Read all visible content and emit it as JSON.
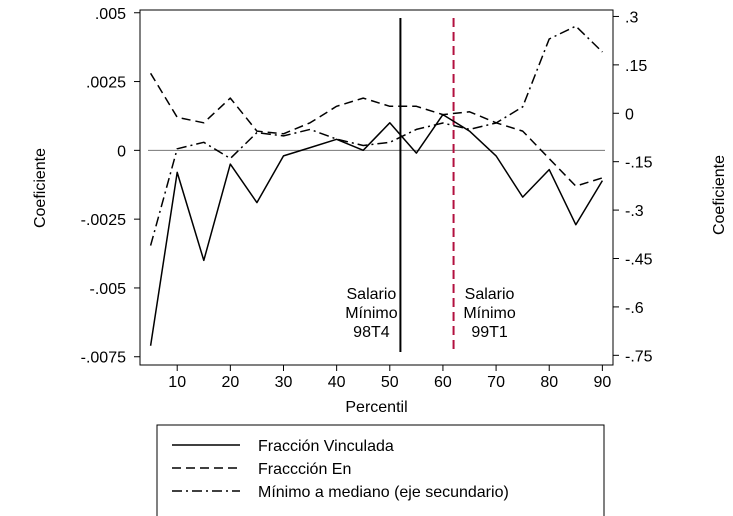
{
  "chart_data": {
    "type": "line",
    "xlabel": "Percentil",
    "ylabel_left": "Coeficiente",
    "ylabel_right": "Coeficiente",
    "xlim": [
      3,
      92
    ],
    "ylim_left": [
      -0.0078,
      0.0051
    ],
    "ylim_right": [
      -0.78,
      0.32
    ],
    "x_ticks": [
      10,
      20,
      30,
      40,
      50,
      60,
      70,
      80,
      90
    ],
    "y_ticks_left": [
      ".005",
      ".0025",
      "0",
      "-.0025",
      "-.005",
      "-.0075"
    ],
    "y_ticks_left_values": [
      0.005,
      0.0025,
      0,
      -0.0025,
      -0.005,
      -0.0075
    ],
    "y_ticks_right": [
      ".3",
      ".15",
      "0",
      "-.15",
      "-.3",
      "-.45",
      "-.6",
      "-.75"
    ],
    "y_ticks_right_values": [
      0.3,
      0.15,
      0,
      -0.15,
      -0.3,
      -0.45,
      -0.6,
      -0.75
    ],
    "x": [
      5,
      10,
      15,
      20,
      25,
      30,
      35,
      40,
      45,
      50,
      55,
      60,
      65,
      70,
      75,
      80,
      85,
      90
    ],
    "series": [
      {
        "name": "Fracción Vinculada",
        "axis": "left",
        "dash": "solid",
        "values": [
          -0.0071,
          -0.0008,
          -0.004,
          -0.0005,
          -0.0019,
          -0.0002,
          0.0001,
          0.0004,
          0.0,
          0.001,
          -0.0001,
          0.0013,
          0.0007,
          -0.0002,
          -0.0017,
          -0.0007,
          -0.0027,
          -0.0011
        ]
      },
      {
        "name": "Fraccción En",
        "axis": "left",
        "dash": "dashed",
        "values": [
          0.0028,
          0.0012,
          0.001,
          0.0019,
          0.0007,
          0.0006,
          0.001,
          0.0016,
          0.0019,
          0.0016,
          0.0016,
          0.0013,
          0.0014,
          0.001,
          0.0007,
          -0.0003,
          -0.0013,
          -0.001
        ]
      },
      {
        "name": "Mínimo a mediano (eje secundario)",
        "axis": "right",
        "dash": "dashdot",
        "values": [
          -0.41,
          -0.11,
          -0.09,
          -0.14,
          -0.06,
          -0.07,
          -0.05,
          -0.08,
          -0.1,
          -0.09,
          -0.05,
          -0.03,
          -0.05,
          -0.03,
          0.02,
          0.23,
          0.27,
          0.19
        ]
      }
    ],
    "hline": {
      "value": 0,
      "axis": "left"
    },
    "vlines": [
      {
        "x": 52,
        "color": "#000000",
        "dash": "solid",
        "label": [
          "Salario",
          "Mínimo",
          "98T4"
        ]
      },
      {
        "x": 62,
        "color": "#b2103f",
        "dash": "dashed",
        "label": [
          "Salario",
          "Mínimo",
          "99T1"
        ]
      }
    ],
    "legend": {
      "placement": "bottom",
      "entries": [
        "Fracción Vinculada",
        "Fraccción En",
        "Mínimo a mediano (eje secundario)"
      ]
    }
  }
}
